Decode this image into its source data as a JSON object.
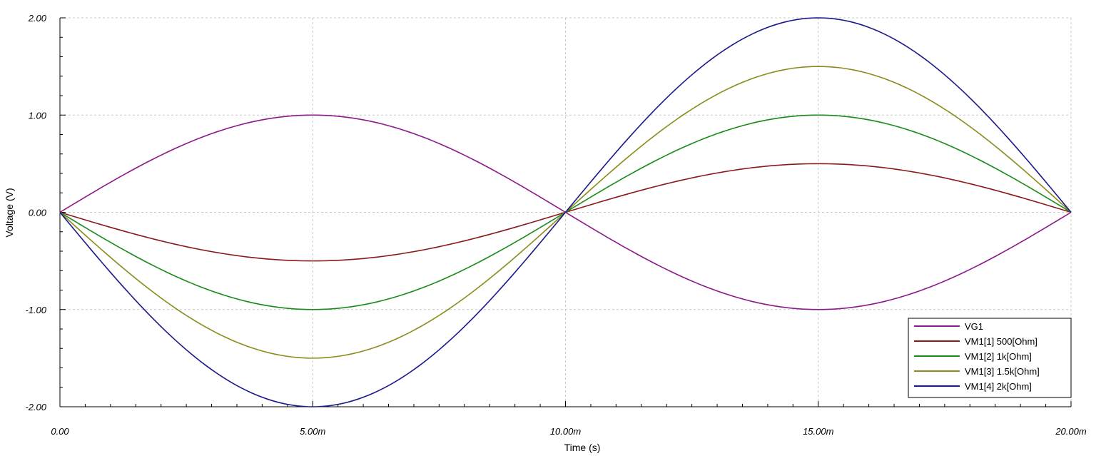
{
  "chart_data": {
    "type": "line",
    "xlabel": "Time (s)",
    "ylabel": "Voltage (V)",
    "xlim": [
      0,
      0.02
    ],
    "ylim": [
      -2,
      2
    ],
    "grid": true,
    "legend_position": "bottom-right",
    "x_ticks": [
      {
        "value": 0,
        "label": "0.00"
      },
      {
        "value": 0.005,
        "label": "5.00m"
      },
      {
        "value": 0.01,
        "label": "10.00m"
      },
      {
        "value": 0.015,
        "label": "15.00m"
      },
      {
        "value": 0.02,
        "label": "20.00m"
      }
    ],
    "y_ticks": [
      {
        "value": 2,
        "label": "2.00"
      },
      {
        "value": 1,
        "label": "1.00"
      },
      {
        "value": 0,
        "label": "0.00"
      },
      {
        "value": -1,
        "label": "-1.00"
      },
      {
        "value": -2,
        "label": "-2.00"
      }
    ],
    "x": [
      0,
      0.0025,
      0.005,
      0.0075,
      0.01,
      0.0125,
      0.015,
      0.0175,
      0.02
    ],
    "series": [
      {
        "name": "VG1",
        "color": "#8b1a8b",
        "values": [
          0,
          0.707,
          1,
          0.707,
          0,
          -0.707,
          -1,
          -0.707,
          0
        ]
      },
      {
        "name": "VM1[1]  500[Ohm]",
        "color": "#8b1a1a",
        "values": [
          0,
          -0.354,
          -0.5,
          -0.354,
          0,
          0.354,
          0.5,
          0.354,
          0
        ]
      },
      {
        "name": "VM1[2]  1k[Ohm]",
        "color": "#1a8b1a",
        "values": [
          0,
          -0.707,
          -1,
          -0.707,
          0,
          0.707,
          1,
          0.707,
          0
        ]
      },
      {
        "name": "VM1[3]  1.5k[Ohm]",
        "color": "#8b8b1a",
        "values": [
          0,
          -1.061,
          -1.5,
          -1.061,
          0,
          1.061,
          1.5,
          1.061,
          0
        ]
      },
      {
        "name": "VM1[4]  2k[Ohm]",
        "color": "#1a1a8b",
        "values": [
          0,
          -1.414,
          -2,
          -1.414,
          0,
          1.414,
          2,
          1.414,
          0
        ]
      }
    ]
  }
}
